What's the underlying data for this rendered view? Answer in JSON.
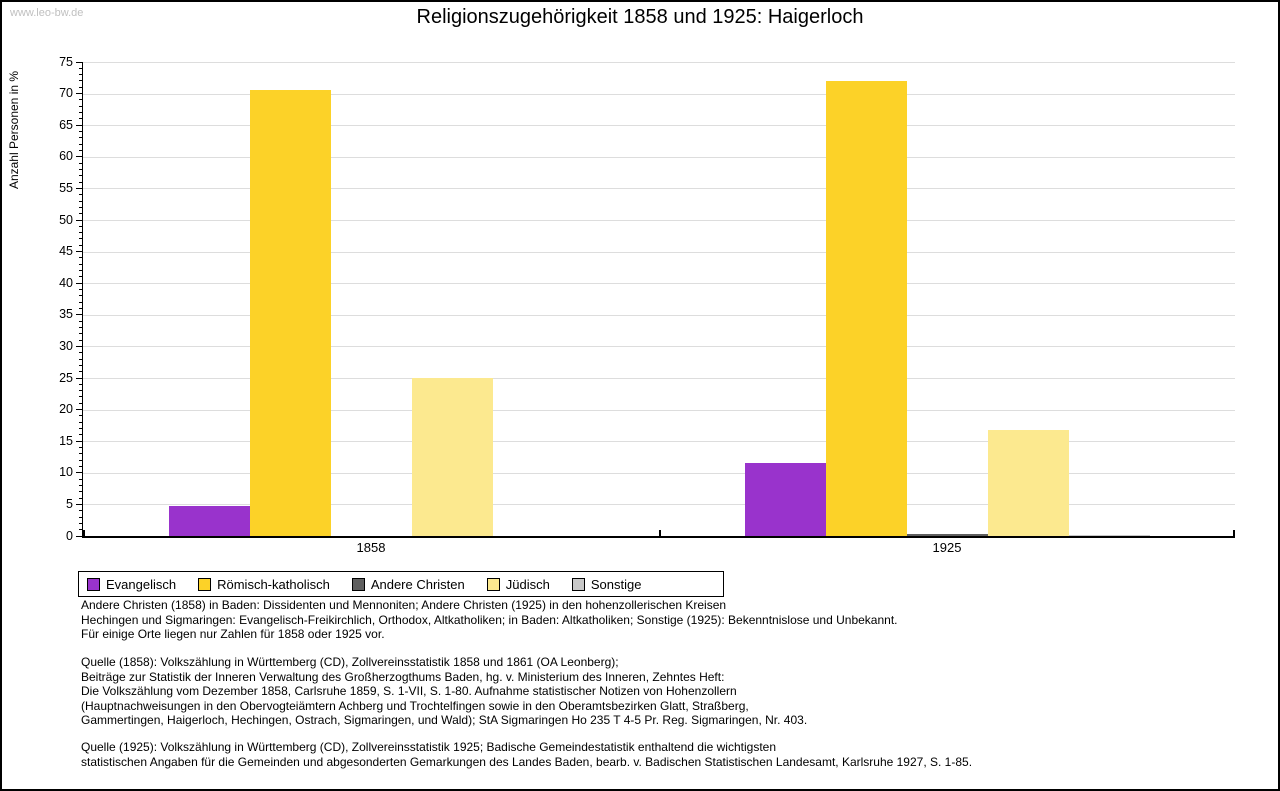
{
  "watermark": "www.leo-bw.de",
  "title": "Religionszugehörigkeit 1858 und 1925: Haigerloch",
  "colors": {
    "background": "#FFFFFF",
    "axis": "#000000",
    "grid": "#DDDDDD",
    "watermark_text": "#C0C0C0"
  },
  "chart_data": {
    "type": "bar",
    "title": "Religionszugehörigkeit 1858 und 1925: Haigerloch",
    "xlabel": "",
    "ylabel": "Anzahl Personen in %",
    "ylim": [
      0,
      75
    ],
    "ytick_step": 5,
    "yminor_step": 1,
    "grid": true,
    "legend_position": "bottom",
    "categories": [
      "1858",
      "1925"
    ],
    "series": [
      {
        "name": "Evangelisch",
        "color": "#9933CC",
        "values": [
          4.8,
          11.5
        ]
      },
      {
        "name": "Römisch-katholisch",
        "color": "#FCD228",
        "values": [
          70.5,
          72.0
        ]
      },
      {
        "name": "Andere Christen",
        "color": "#5F5F5F",
        "values": [
          0,
          0.3
        ]
      },
      {
        "name": "Jüdisch",
        "color": "#FCE98F",
        "values": [
          25.0,
          16.7
        ]
      },
      {
        "name": "Sonstige",
        "color": "#C8C8C8",
        "values": [
          0,
          0.2
        ]
      }
    ]
  },
  "footnotes": {
    "notes": [
      "Andere Christen (1858) in Baden: Dissidenten und Mennoniten; Andere Christen (1925) in den hohenzollerischen Kreisen",
      "Hechingen und Sigmaringen: Evangelisch-Freikirchlich, Orthodox, Altkatholiken; in Baden: Altkatholiken; Sonstige (1925): Bekenntnislose und Unbekannt.",
      "Für einige Orte liegen nur Zahlen für 1858 oder 1925 vor."
    ],
    "source_1858": [
      "Quelle (1858): Volkszählung in Württemberg (CD), Zollvereinsstatistik 1858 und 1861 (OA Leonberg);",
      "Beiträge zur Statistik der Inneren Verwaltung des Großherzogthums Baden, hg. v. Ministerium des Inneren, Zehntes Heft:",
      "Die Volkszählung vom Dezember 1858, Carlsruhe 1859, S. 1-VII, S. 1-80. Aufnahme statistischer Notizen von Hohenzollern",
      "(Hauptnachweisungen in den Obervogteiämtern Achberg und Trochtelfingen sowie in den Oberamtsbezirken Glatt, Straßberg,",
      "Gammertingen, Haigerloch, Hechingen, Ostrach, Sigmaringen, und Wald); StA Sigmaringen Ho 235 T 4-5 Pr. Reg. Sigmaringen, Nr. 403."
    ],
    "source_1925": [
      "Quelle (1925): Volkszählung in Württemberg (CD), Zollvereinsstatistik 1925; Badische Gemeindestatistik enthaltend die wichtigsten",
      "statistischen Angaben für die Gemeinden und abgesonderten Gemarkungen des Landes Baden, bearb. v. Badischen Statistischen Landesamt, Karlsruhe 1927, S. 1-85."
    ]
  }
}
